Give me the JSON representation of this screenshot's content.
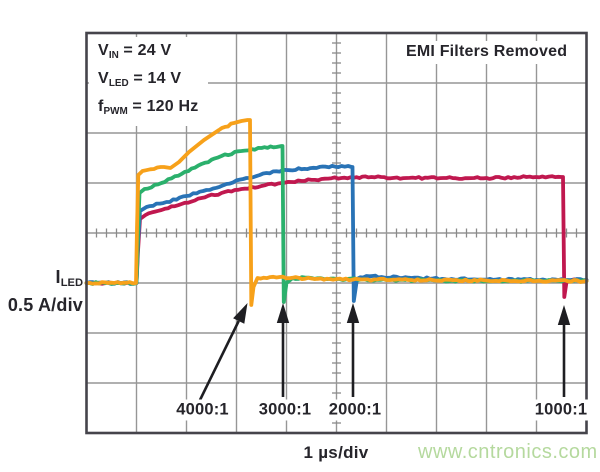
{
  "annotations": {
    "params": [
      {
        "base": "V",
        "sub": "IN",
        "rest": " = 24 V"
      },
      {
        "base": "V",
        "sub": "LED",
        "rest": " = 14 V"
      },
      {
        "base": "f",
        "sub": "PWM",
        "rest": " = 120 Hz"
      }
    ],
    "top_right": "EMI Filters Removed",
    "y_axis": {
      "base": "I",
      "sub": "LED",
      "line2": "0.5 A/div"
    },
    "x_axis": "1 µs/div",
    "watermark": "www.cntronics.com"
  },
  "chart_data": {
    "type": "line",
    "style": "oscilloscope",
    "note": "EMI Filters Removed",
    "conditions": [
      "VIN = 24 V",
      "VLED = 14 V",
      "fPWM = 120 Hz"
    ],
    "xlabel": "1 µs/div",
    "ylabel": "ILED 0.5 A/div",
    "x_units_per_div_us": 1,
    "y_units_per_div_A": 0.5,
    "divisions": {
      "x": 10,
      "y": 8
    },
    "xlim_us": [
      0,
      10
    ],
    "ylim_A": [
      -1.5,
      2.5
    ],
    "zero_level_divs_below_center": 1,
    "grid": {
      "line_color": "#969696",
      "border_color": "#45444b",
      "tick_color": "#8a8a8a",
      "minor_ticks_per_div": 5
    },
    "series": [
      {
        "name": "1000:1",
        "color": "#c0184f",
        "seed": 11,
        "points": [
          [
            0,
            0
          ],
          [
            1.0,
            0
          ],
          [
            1.03,
            0.32
          ],
          [
            1.07,
            0.64
          ],
          [
            1.18,
            0.68
          ],
          [
            1.5,
            0.73
          ],
          [
            1.9,
            0.79
          ],
          [
            2.3,
            0.85
          ],
          [
            2.7,
            0.9
          ],
          [
            3.1,
            0.94
          ],
          [
            3.5,
            0.97
          ],
          [
            3.9,
            1.0
          ],
          [
            4.3,
            1.02
          ],
          [
            4.7,
            1.04
          ],
          [
            5.1,
            1.05
          ],
          [
            5.7,
            1.06
          ],
          [
            6.4,
            1.05
          ],
          [
            7.2,
            1.05
          ],
          [
            8.0,
            1.05
          ],
          [
            8.8,
            1.06
          ],
          [
            9.5,
            1.06
          ],
          [
            9.53,
            1.06
          ],
          [
            9.555,
            -0.14
          ],
          [
            9.6,
            0.01
          ],
          [
            9.7,
            0.03
          ],
          [
            10,
            0.03
          ]
        ]
      },
      {
        "name": "2000:1",
        "color": "#2973b6",
        "seed": 23,
        "points": [
          [
            0,
            0
          ],
          [
            1.0,
            0
          ],
          [
            1.03,
            0.4
          ],
          [
            1.07,
            0.72
          ],
          [
            1.2,
            0.76
          ],
          [
            1.6,
            0.81
          ],
          [
            2.0,
            0.87
          ],
          [
            2.4,
            0.93
          ],
          [
            2.8,
            0.99
          ],
          [
            3.2,
            1.05
          ],
          [
            3.6,
            1.1
          ],
          [
            4.0,
            1.13
          ],
          [
            4.6,
            1.15
          ],
          [
            5.1,
            1.17
          ],
          [
            5.3,
            1.16
          ],
          [
            5.32,
            1.16
          ],
          [
            5.345,
            -0.18
          ],
          [
            5.41,
            0.04
          ],
          [
            5.6,
            0.07
          ],
          [
            5.9,
            0.06
          ],
          [
            6.5,
            0.05
          ],
          [
            7.3,
            0.04
          ],
          [
            8.2,
            0.035
          ],
          [
            9.0,
            0.03
          ],
          [
            10,
            0.03
          ]
        ]
      },
      {
        "name": "3000:1",
        "color": "#2bb06c",
        "seed": 37,
        "points": [
          [
            0,
            0
          ],
          [
            1.0,
            0
          ],
          [
            1.03,
            0.5
          ],
          [
            1.06,
            0.9
          ],
          [
            1.16,
            0.94
          ],
          [
            1.5,
            1.0
          ],
          [
            1.9,
            1.09
          ],
          [
            2.3,
            1.19
          ],
          [
            2.7,
            1.27
          ],
          [
            3.1,
            1.32
          ],
          [
            3.5,
            1.35
          ],
          [
            3.8,
            1.36
          ],
          [
            3.9,
            1.37
          ],
          [
            3.92,
            1.37
          ],
          [
            3.945,
            -0.19
          ],
          [
            4.0,
            0.0
          ],
          [
            4.12,
            0.05
          ],
          [
            4.5,
            0.05
          ],
          [
            5.0,
            0.04
          ],
          [
            6.0,
            0.03
          ],
          [
            7.0,
            0.025
          ],
          [
            8.0,
            0.02
          ],
          [
            9.0,
            0.02
          ],
          [
            10,
            0.02
          ]
        ]
      },
      {
        "name": "4000:1",
        "color": "#f7a11a",
        "seed": 55,
        "points": [
          [
            0,
            0
          ],
          [
            0.99,
            0
          ],
          [
            1.01,
            0.55
          ],
          [
            1.035,
            1.08
          ],
          [
            1.12,
            1.12
          ],
          [
            1.35,
            1.14
          ],
          [
            1.55,
            1.16
          ],
          [
            1.68,
            1.15
          ],
          [
            1.85,
            1.21
          ],
          [
            2.05,
            1.31
          ],
          [
            2.35,
            1.43
          ],
          [
            2.65,
            1.53
          ],
          [
            2.95,
            1.6
          ],
          [
            3.1,
            1.62
          ],
          [
            3.22,
            1.63
          ],
          [
            3.27,
            1.63
          ],
          [
            3.295,
            -0.22
          ],
          [
            3.34,
            -0.04
          ],
          [
            3.42,
            0.05
          ],
          [
            3.8,
            0.055
          ],
          [
            4.5,
            0.045
          ],
          [
            5.5,
            0.035
          ],
          [
            6.5,
            0.03
          ],
          [
            8.0,
            0.025
          ],
          [
            9.0,
            0.02
          ],
          [
            10,
            0.02
          ]
        ]
      }
    ],
    "callouts": [
      {
        "label": "4000:1",
        "tip": [
          3.22,
          -0.2
        ],
        "tail": [
          2.27,
          -1.17
        ],
        "label_pos": [
          2.32,
          -1.27
        ]
      },
      {
        "label": "3000:1",
        "tip": [
          3.93,
          -0.2
        ],
        "tail": [
          3.93,
          -1.14
        ],
        "label_pos": [
          3.97,
          -1.27
        ]
      },
      {
        "label": "2000:1",
        "tip": [
          5.33,
          -0.2
        ],
        "tail": [
          5.33,
          -1.14
        ],
        "label_pos": [
          5.37,
          -1.27
        ]
      },
      {
        "label": "1000:1",
        "tip": [
          9.55,
          -0.22
        ],
        "tail": [
          9.55,
          -1.14
        ],
        "label_pos": [
          9.49,
          -1.27
        ]
      }
    ],
    "arrow_color": "#1e1e22"
  }
}
